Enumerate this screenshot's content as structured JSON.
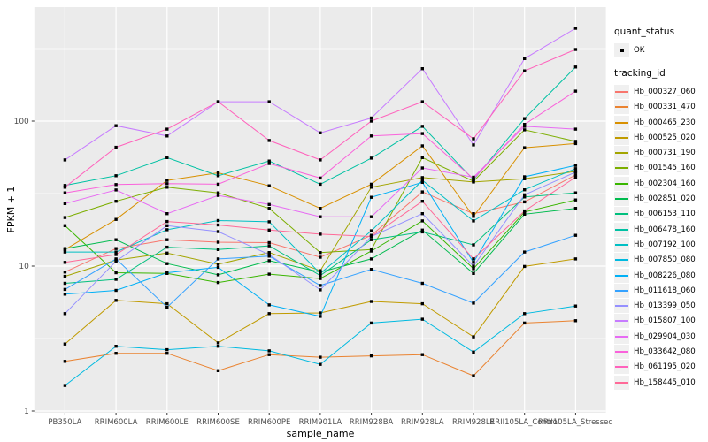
{
  "figure": {
    "background": "#FFFFFF",
    "panel_background": "#EBEBEB",
    "grid_color": "#FFFFFF",
    "point_color": "#000000",
    "tick_label_color": "#4D4D4D",
    "axis_title_color": "#000000",
    "legend_key_background": "#F0F0F0"
  },
  "legend": {
    "quant_title": "quant_status",
    "quant_items": [
      {
        "label": "OK",
        "marker": "point-icon"
      }
    ],
    "tracking_title": "tracking_id"
  },
  "chart_data": {
    "type": "line",
    "title": "",
    "xlabel": "sample_name",
    "ylabel": "FPKM + 1",
    "y_scale": "log10",
    "ylim": [
      0.97,
      620
    ],
    "y_major_ticks": [
      1,
      10,
      100
    ],
    "y_minor_ticks": [
      3.162,
      31.62,
      316.2
    ],
    "grid": true,
    "legend_position": "right",
    "marker": "small-black-square",
    "x_categories": [
      "PB350LA",
      "RRIM600LA",
      "RRIM600LE",
      "RRIM600SE",
      "RRIM600PE",
      "RRIM901LA",
      "RRIM928BA",
      "RRIM928LA",
      "RRIM928LE",
      "RRII105LA_Control",
      "RRII105LA_Stressed"
    ],
    "series": [
      {
        "name": "Hb_000327_060",
        "color": "#F8766D",
        "values": [
          9.1,
          13.2,
          15.2,
          14.6,
          14.5,
          11.5,
          16.3,
          32.5,
          23,
          27.7,
          42.5
        ]
      },
      {
        "name": "Hb_000331_470",
        "color": "#EA8331",
        "values": [
          2.2,
          2.5,
          2.5,
          1.9,
          2.45,
          2.35,
          2.4,
          2.45,
          1.75,
          4.05,
          4.2
        ]
      },
      {
        "name": "Hb_000465_230",
        "color": "#D89000",
        "values": [
          13,
          21,
          39,
          44,
          35.8,
          25,
          36.7,
          67.5,
          22,
          65.5,
          70
        ]
      },
      {
        "name": "Hb_000525_020",
        "color": "#C09B00",
        "values": [
          2.9,
          5.8,
          5.5,
          2.95,
          4.7,
          4.75,
          5.7,
          5.5,
          3.25,
          9.95,
          11.2
        ]
      },
      {
        "name": "Hb_000731_190",
        "color": "#A3A500",
        "values": [
          8.5,
          11,
          12.3,
          10.3,
          12.4,
          9.3,
          35,
          40.8,
          38,
          40,
          45
        ]
      },
      {
        "name": "Hb_001545_160",
        "color": "#7CAE00",
        "values": [
          21.6,
          28,
          35,
          32,
          25,
          12.4,
          13,
          56,
          38.5,
          87,
          72.5
        ]
      },
      {
        "name": "Hb_002304_160",
        "color": "#39B600",
        "values": [
          19,
          9,
          8.9,
          7.7,
          8.8,
          8.2,
          12.7,
          20.5,
          9.6,
          23.6,
          28.6
        ]
      },
      {
        "name": "Hb_002851_020",
        "color": "#00BB4E",
        "values": [
          13.2,
          15.2,
          10.4,
          8.7,
          10.9,
          9.1,
          11.2,
          17.7,
          8.9,
          22.8,
          25
        ]
      },
      {
        "name": "Hb_006153_110",
        "color": "#00BF7D",
        "values": [
          7.6,
          8.1,
          13.5,
          13,
          13.8,
          8.6,
          15.2,
          17.2,
          14,
          30,
          32
        ]
      },
      {
        "name": "Hb_006478_160",
        "color": "#00C1A3",
        "values": [
          36,
          42,
          56,
          42,
          53,
          36.7,
          55.5,
          92,
          39.4,
          104,
          236
        ]
      },
      {
        "name": "Hb_007192_100",
        "color": "#00BFC4",
        "values": [
          12.5,
          12.5,
          17.8,
          20.6,
          20.2,
          8.9,
          17.5,
          39,
          20.5,
          33.6,
          47
        ]
      },
      {
        "name": "Hb_007850_080",
        "color": "#00BAE0",
        "values": [
          1.5,
          2.8,
          2.65,
          2.8,
          2.6,
          2.1,
          4.05,
          4.3,
          2.55,
          4.7,
          5.3
        ]
      },
      {
        "name": "Hb_008226_080",
        "color": "#00B0F6",
        "values": [
          6.4,
          6.8,
          9,
          9.8,
          5.4,
          4.5,
          29.8,
          37.8,
          10.6,
          41.3,
          49.5
        ]
      },
      {
        "name": "Hb_011618_060",
        "color": "#35A2FF",
        "values": [
          6.9,
          11.2,
          5.2,
          11.2,
          11.7,
          7.35,
          9.5,
          7.6,
          5.55,
          12.5,
          16.3
        ]
      },
      {
        "name": "Hb_013399_050",
        "color": "#9590FF",
        "values": [
          4.7,
          10.8,
          19,
          17.3,
          12,
          6.85,
          16,
          23,
          10,
          31,
          44.5
        ]
      },
      {
        "name": "Hb_015807_100",
        "color": "#C77CFF",
        "values": [
          54,
          93,
          79,
          136,
          136,
          83,
          105,
          230,
          68.5,
          270,
          437
        ]
      },
      {
        "name": "Hb_029904_030",
        "color": "#E76BF3",
        "values": [
          27,
          33.5,
          23,
          30.7,
          26.6,
          21.9,
          21.9,
          47.5,
          41,
          92,
          88
        ]
      },
      {
        "name": "Hb_033642_080",
        "color": "#FA62DB",
        "values": [
          32,
          36.5,
          37,
          36.7,
          51,
          40.5,
          79,
          82,
          40,
          95,
          161
        ]
      },
      {
        "name": "Hb_061195_020",
        "color": "#FF62BC",
        "values": [
          35,
          66,
          88,
          136,
          73.5,
          54,
          100,
          136,
          75.5,
          222,
          312
        ]
      },
      {
        "name": "Hb_158445_010",
        "color": "#FF6A98",
        "values": [
          10.6,
          12,
          20.3,
          19.2,
          17.7,
          16.6,
          16,
          28,
          11.2,
          24,
          41
        ]
      }
    ]
  }
}
